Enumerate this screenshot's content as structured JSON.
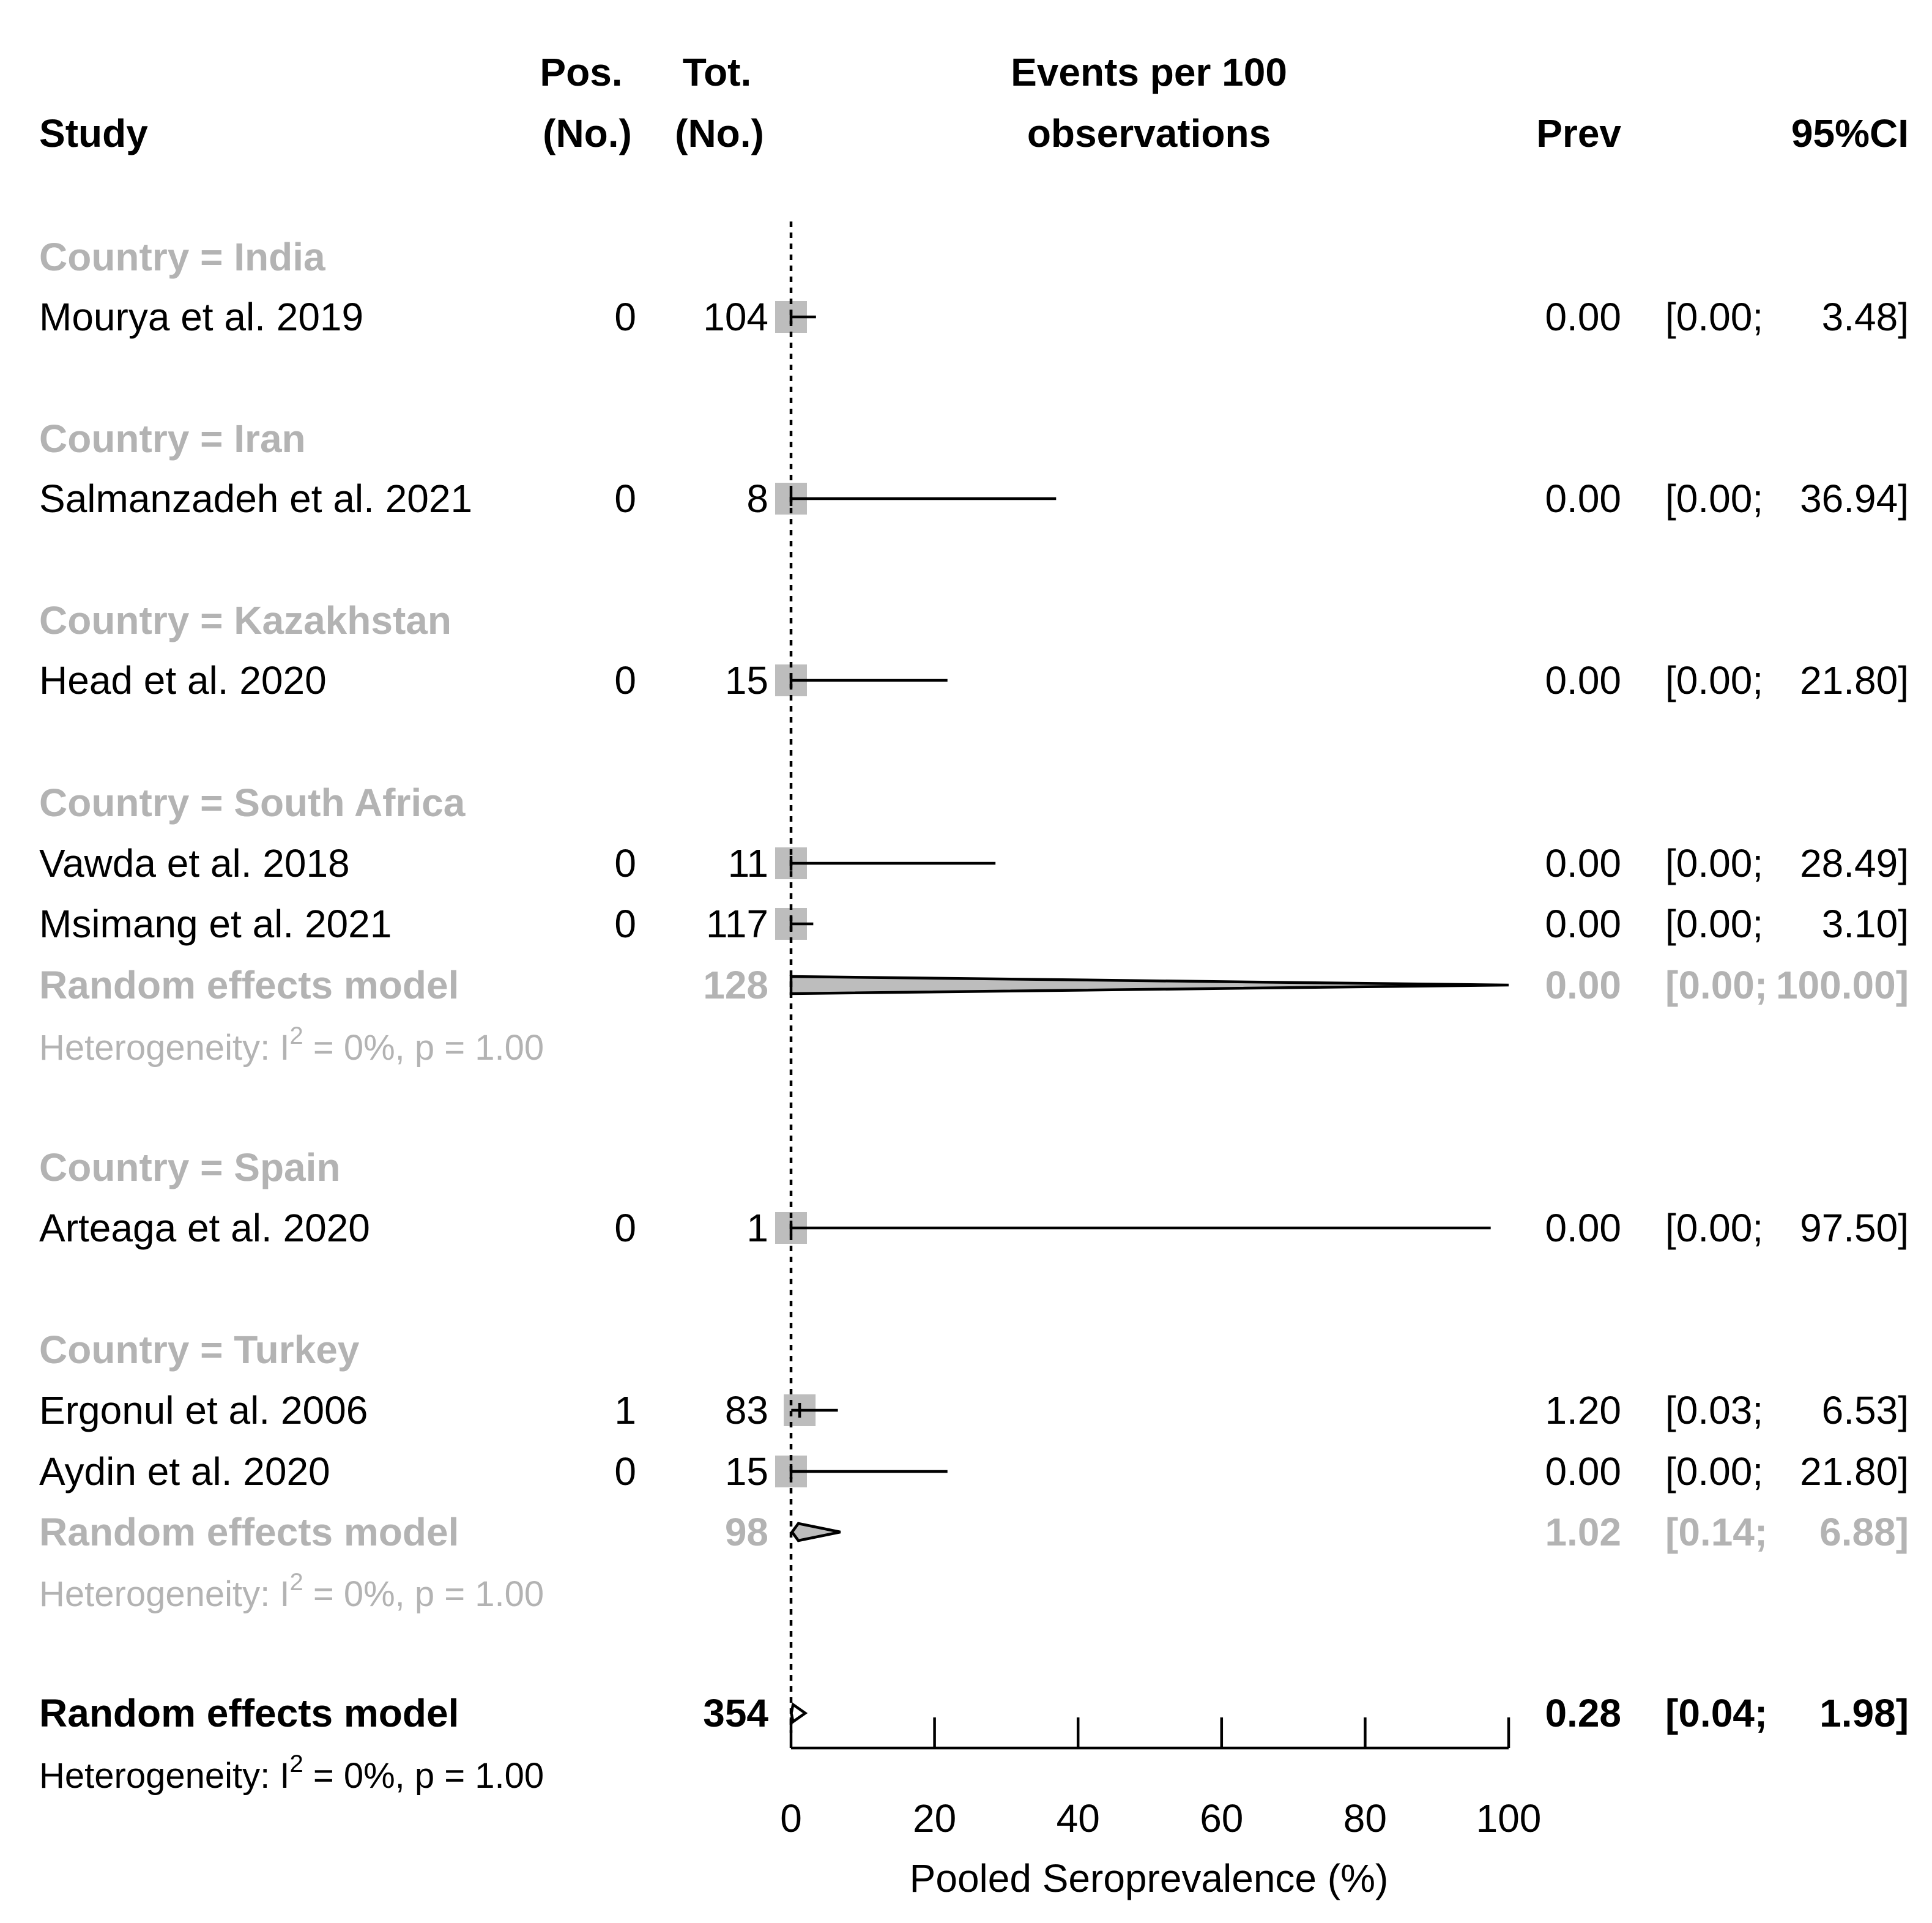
{
  "chart_data": {
    "type": "forest",
    "xlabel": "Pooled Seroprevalence (%)",
    "xlim": [
      0,
      100
    ],
    "xticks": [
      0,
      20,
      40,
      60,
      80,
      100
    ],
    "reference_line": 0,
    "columns": {
      "study": "Study",
      "pos_line1": "Pos.",
      "pos_line2": "(No.)",
      "tot_line1": "Tot.",
      "tot_line2": "(No.)",
      "events_line1": "Events per 100",
      "events_line2": "observations",
      "prev": "Prev",
      "ci": "95%CI"
    },
    "rows": [
      {
        "kind": "group",
        "label": "Country = India"
      },
      {
        "kind": "study",
        "label": "Mourya et al. 2019",
        "pos": "0",
        "tot": "104",
        "prev": 0.0,
        "lower": 0.0,
        "upper": 3.48,
        "prev_text": "0.00",
        "ci_open": "[0.00;",
        "ci_close": "3.48]"
      },
      {
        "kind": "group",
        "label": "Country = Iran"
      },
      {
        "kind": "study",
        "label": "Salmanzadeh et al. 2021",
        "pos": "0",
        "tot": "8",
        "prev": 0.0,
        "lower": 0.0,
        "upper": 36.94,
        "prev_text": "0.00",
        "ci_open": "[0.00;",
        "ci_close": "36.94]"
      },
      {
        "kind": "group",
        "label": "Country = Kazakhstan"
      },
      {
        "kind": "study",
        "label": "Head et al. 2020",
        "pos": "0",
        "tot": "15",
        "prev": 0.0,
        "lower": 0.0,
        "upper": 21.8,
        "prev_text": "0.00",
        "ci_open": "[0.00;",
        "ci_close": "21.80]"
      },
      {
        "kind": "group",
        "label": "Country = South Africa"
      },
      {
        "kind": "study",
        "label": "Vawda et al. 2018",
        "pos": "0",
        "tot": "11",
        "prev": 0.0,
        "lower": 0.0,
        "upper": 28.49,
        "prev_text": "0.00",
        "ci_open": "[0.00;",
        "ci_close": "28.49]"
      },
      {
        "kind": "study",
        "label": "Msimang et al. 2021",
        "pos": "0",
        "tot": "117",
        "prev": 0.0,
        "lower": 0.0,
        "upper": 3.1,
        "prev_text": "0.00",
        "ci_open": "[0.00;",
        "ci_close": "3.10]"
      },
      {
        "kind": "subtotal",
        "label": "Random effects model",
        "tot": "128",
        "prev": 0.0,
        "lower": 0.0,
        "upper": 100.0,
        "prev_text": "0.00",
        "ci_open": "[0.00;",
        "ci_close": "100.00]"
      },
      {
        "kind": "het",
        "style": "grey",
        "prefix": "Heterogeneity: ",
        "i2": "I",
        "i2_sup": "2",
        "mid": " = 0%, ",
        "p": "p",
        "tail": " = 1.00"
      },
      {
        "kind": "group",
        "label": "Country = Spain"
      },
      {
        "kind": "study",
        "label": "Arteaga et al. 2020",
        "pos": "0",
        "tot": "1",
        "prev": 0.0,
        "lower": 0.0,
        "upper": 97.5,
        "prev_text": "0.00",
        "ci_open": "[0.00;",
        "ci_close": "97.50]"
      },
      {
        "kind": "group",
        "label": "Country = Turkey"
      },
      {
        "kind": "study",
        "label": "Ergonul et al. 2006",
        "pos": "1",
        "tot": "83",
        "prev": 1.2,
        "lower": 0.03,
        "upper": 6.53,
        "prev_text": "1.20",
        "ci_open": "[0.03;",
        "ci_close": "6.53]"
      },
      {
        "kind": "study",
        "label": "Aydin et al. 2020",
        "pos": "0",
        "tot": "15",
        "prev": 0.0,
        "lower": 0.0,
        "upper": 21.8,
        "prev_text": "0.00",
        "ci_open": "[0.00;",
        "ci_close": "21.80]"
      },
      {
        "kind": "subtotal",
        "label": "Random effects model",
        "tot": "98",
        "prev": 1.02,
        "lower": 0.14,
        "upper": 6.88,
        "prev_text": "1.02",
        "ci_open": "[0.14;",
        "ci_close": "6.88]"
      },
      {
        "kind": "het",
        "style": "grey",
        "prefix": "Heterogeneity: ",
        "i2": "I",
        "i2_sup": "2",
        "mid": " = 0%, ",
        "p": "p",
        "tail": " = 1.00"
      },
      {
        "kind": "overall",
        "label": "Random effects model",
        "tot": "354",
        "prev": 0.28,
        "lower": 0.04,
        "upper": 1.98,
        "prev_text": "0.28",
        "ci_open": "[0.04;",
        "ci_close": "1.98]"
      },
      {
        "kind": "het",
        "style": "black",
        "prefix": "Heterogeneity: ",
        "i2": "I",
        "i2_sup": "2",
        "mid": " = 0%, ",
        "p": "p",
        "tail": " = 1.00"
      }
    ]
  }
}
